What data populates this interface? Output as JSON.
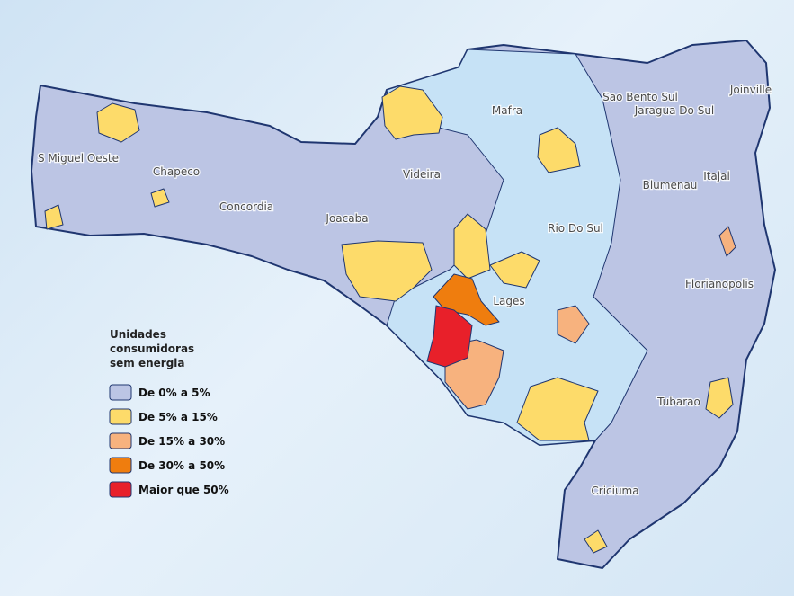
{
  "map": {
    "regions": [
      {
        "label": "S Miguel Oeste"
      },
      {
        "label": "Chapeco"
      },
      {
        "label": "Concordia"
      },
      {
        "label": "Joacaba"
      },
      {
        "label": "Videira"
      },
      {
        "label": "Mafra"
      },
      {
        "label": "Sao Bento Sul"
      },
      {
        "label": "Jaragua Do Sul"
      },
      {
        "label": "Joinville"
      },
      {
        "label": "Blumenau"
      },
      {
        "label": "Itajai"
      },
      {
        "label": "Rio Do Sul"
      },
      {
        "label": "Lages"
      },
      {
        "label": "Florianopolis"
      },
      {
        "label": "Tubarao"
      },
      {
        "label": "Criciuma"
      }
    ],
    "legend": {
      "title_lines": [
        "Unidades",
        "consumidoras",
        "sem energia"
      ],
      "entries": [
        {
          "label": "De 0% a 5%",
          "color": "#bcc5e4"
        },
        {
          "label": "De 5% a 15%",
          "color": "#fddb6a"
        },
        {
          "label": "De 15% a 30%",
          "color": "#f7b27e"
        },
        {
          "label": "De 30% a 50%",
          "color": "#ef7d0e"
        },
        {
          "label": "Maior que 50%",
          "color": "#e8202a"
        }
      ]
    }
  }
}
